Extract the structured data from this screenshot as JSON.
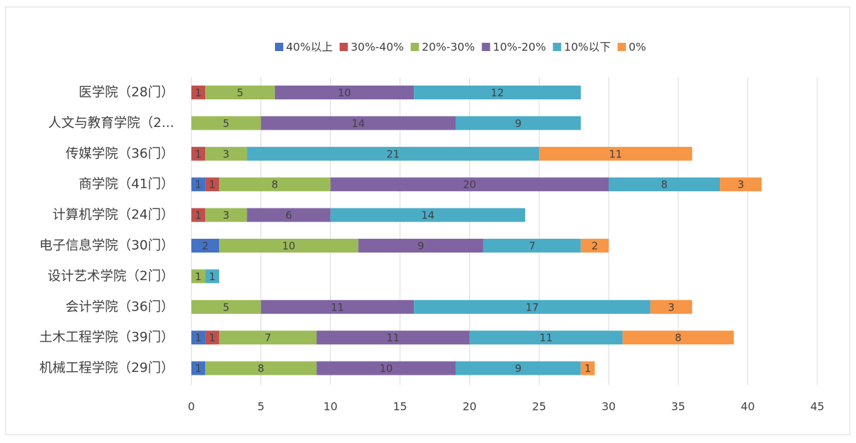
{
  "chart_data": {
    "type": "stacked-bar-horizontal",
    "categories": [
      "医学院（28门）",
      "人文与教育学院（2...",
      "传媒学院（36门）",
      "商学院（41门）",
      "计算机学院（24门）",
      "电子信息学院（30门）",
      "设计艺术学院（2门）",
      "会计学院（36门）",
      "土木工程学院（39门）",
      "机械工程学院（29门）"
    ],
    "series": [
      {
        "name": "40%以上",
        "color": "#4472c4",
        "values": [
          0,
          0,
          0,
          1,
          0,
          2,
          0,
          0,
          1,
          1
        ]
      },
      {
        "name": "30%-40%",
        "color": "#c0504d",
        "values": [
          1,
          0,
          1,
          1,
          1,
          0,
          0,
          0,
          1,
          0
        ]
      },
      {
        "name": "20%-30%",
        "color": "#9bbb59",
        "values": [
          5,
          5,
          3,
          8,
          3,
          10,
          1,
          5,
          7,
          8
        ]
      },
      {
        "name": "10%-20%",
        "color": "#8064a2",
        "values": [
          10,
          14,
          0,
          20,
          6,
          9,
          0,
          11,
          11,
          10
        ]
      },
      {
        "name": "10%以下",
        "color": "#4bacc6",
        "values": [
          12,
          9,
          21,
          8,
          14,
          7,
          1,
          17,
          11,
          9
        ]
      },
      {
        "name": "0%",
        "color": "#f79646",
        "values": [
          0,
          0,
          11,
          3,
          0,
          2,
          0,
          3,
          8,
          1
        ]
      }
    ],
    "xlim": [
      0,
      45
    ],
    "xticks": [
      0,
      5,
      10,
      15,
      20,
      25,
      30,
      35,
      40,
      45
    ],
    "grid": true,
    "legend": "top"
  }
}
